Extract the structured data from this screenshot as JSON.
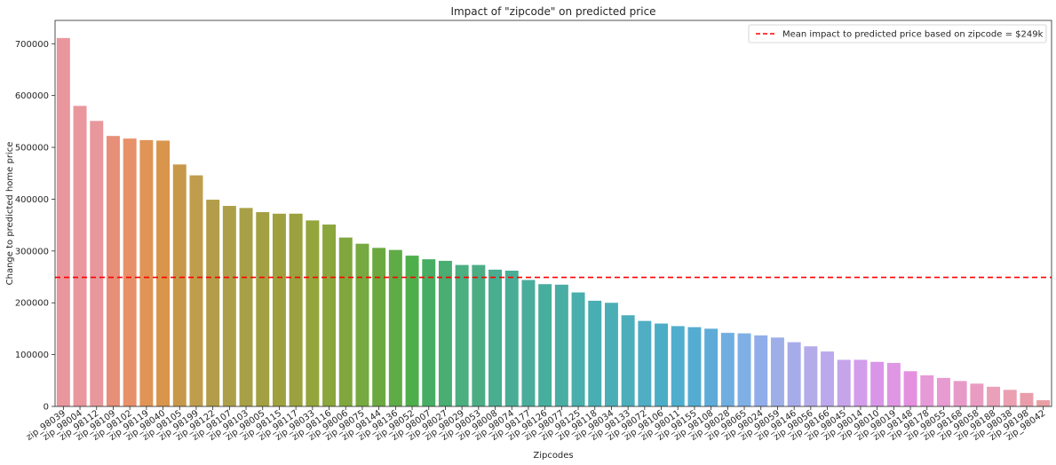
{
  "chart_data": {
    "type": "bar",
    "title": "Impact of \"zipcode\" on predicted price",
    "xlabel": "Zipcodes",
    "ylabel": "Change to predicted home price",
    "ylim": [
      0,
      745000
    ],
    "yticks": [
      0,
      100000,
      200000,
      300000,
      400000,
      500000,
      600000,
      700000
    ],
    "categories": [
      "zip_98039",
      "zip_98004",
      "zip_98112",
      "zip_98109",
      "zip_98102",
      "zip_98119",
      "zip_98040",
      "zip_98105",
      "zip_98199",
      "zip_98122",
      "zip_98107",
      "zip_98103",
      "zip_98005",
      "zip_98115",
      "zip_98117",
      "zip_98033",
      "zip_98116",
      "zip_98006",
      "zip_98075",
      "zip_98144",
      "zip_98136",
      "zip_98052",
      "zip_98007",
      "zip_98027",
      "zip_98029",
      "zip_98053",
      "zip_98008",
      "zip_98074",
      "zip_98177",
      "zip_98126",
      "zip_98077",
      "zip_98125",
      "zip_98118",
      "zip_98034",
      "zip_98133",
      "zip_98072",
      "zip_98106",
      "zip_98011",
      "zip_98155",
      "zip_98108",
      "zip_98028",
      "zip_98065",
      "zip_98024",
      "zip_98059",
      "zip_98146",
      "zip_98056",
      "zip_98166",
      "zip_98045",
      "zip_98014",
      "zip_98010",
      "zip_98019",
      "zip_98148",
      "zip_98178",
      "zip_98055",
      "zip_98168",
      "zip_98058",
      "zip_98188",
      "zip_98038",
      "zip_98198",
      "zip_98042"
    ],
    "values": [
      711000,
      580000,
      551000,
      522000,
      517000,
      514000,
      513000,
      467000,
      446000,
      399000,
      387000,
      383000,
      375000,
      372000,
      372000,
      359000,
      351000,
      326000,
      314000,
      306000,
      302000,
      291000,
      284000,
      281000,
      273000,
      273000,
      264000,
      262000,
      244000,
      236000,
      235000,
      220000,
      204000,
      200000,
      176000,
      165000,
      160000,
      155000,
      153000,
      150000,
      142000,
      141000,
      137000,
      133000,
      124000,
      116000,
      106000,
      90000,
      90000,
      86000,
      84000,
      68000,
      60000,
      55000,
      49000,
      44000,
      38000,
      32000,
      26000,
      12000
    ],
    "colors": [
      "#ea969d",
      "#e9969c",
      "#e8989c",
      "#e78f78",
      "#e7916b",
      "#e09556",
      "#d9954b",
      "#c8984a",
      "#c09d4c",
      "#b39d4a",
      "#ad9f4a",
      "#a8a046",
      "#a3a044",
      "#9fa13f",
      "#9aa13e",
      "#93a53c",
      "#8ba63d",
      "#80a73e",
      "#76a93f",
      "#6ba940",
      "#5fab46",
      "#4fae4c",
      "#48ad64",
      "#4aad72",
      "#4baf80",
      "#4cad85",
      "#49ad8f",
      "#49ad96",
      "#4aac9a",
      "#47ae9e",
      "#4aada4",
      "#49aeac",
      "#49aeb4",
      "#4baeb6",
      "#4caeba",
      "#4faec3",
      "#4caec6",
      "#50aecd",
      "#55acd2",
      "#5eabd8",
      "#70aee0",
      "#7fafe5",
      "#91ade9",
      "#9eafe8",
      "#a6acea",
      "#b4abe9",
      "#bca8ec",
      "#c6a4ea",
      "#d29dea",
      "#d996e8",
      "#df96e4",
      "#e490df",
      "#e69ad8",
      "#e79bd1",
      "#e79ac8",
      "#e99cc2",
      "#eaa0b8",
      "#eaa0b1",
      "#e99daa",
      "#e89fa4"
    ],
    "mean_line": {
      "value": 249000,
      "color": "#ff0000",
      "label": "Mean impact to predicted price based on zipcode = $249k"
    },
    "legend_position": "upper-right",
    "grid": false
  }
}
